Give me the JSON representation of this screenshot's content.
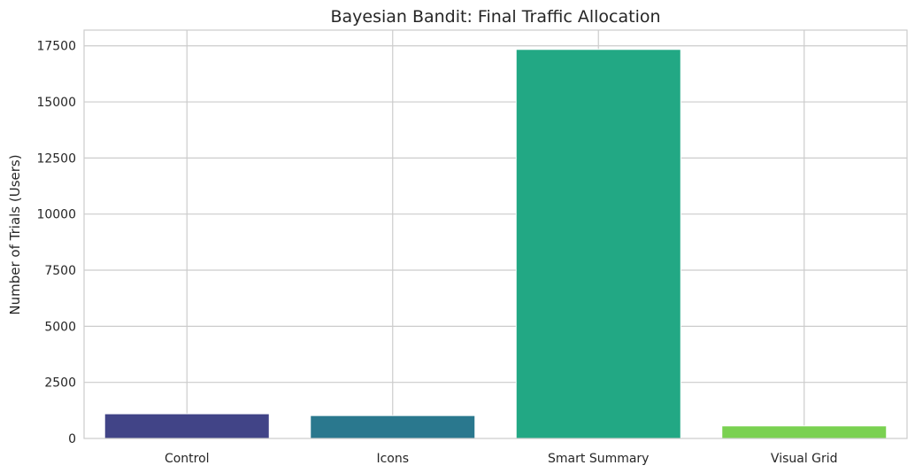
{
  "chart_data": {
    "type": "bar",
    "title": "Bayesian Bandit: Final Traffic Allocation",
    "xlabel": "",
    "ylabel": "Number of Trials (Users)",
    "categories": [
      "Control",
      "Icons",
      "Smart Summary",
      "Visual Grid"
    ],
    "values": [
      1100,
      1020,
      17340,
      560
    ],
    "colors": [
      "#414487",
      "#2a788e",
      "#22a884",
      "#7ad151"
    ],
    "ylim": [
      0,
      18200
    ],
    "yticks": [
      0,
      2500,
      5000,
      7500,
      10000,
      12500,
      15000,
      17500
    ],
    "grid": true
  }
}
